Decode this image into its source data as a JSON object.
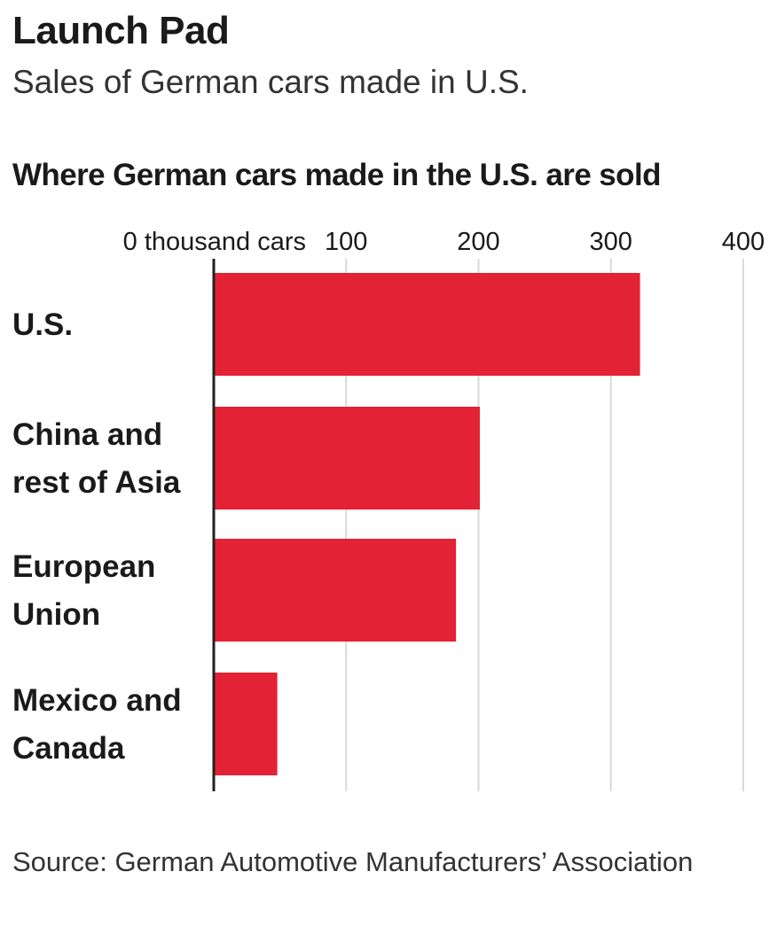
{
  "title": "Launch Pad",
  "subtitle": "Sales of German cars made in U.S.",
  "source": "Source: German Automotive Manufacturers’ Association",
  "colors": {
    "bar": "#e32235",
    "grid": "#d9d9d9",
    "axis": "#222222",
    "text": "#1a1a1a"
  },
  "chart_data": {
    "type": "bar",
    "orientation": "horizontal",
    "title": "Where German cars made in the U.S. are sold",
    "xlabel": "",
    "ylabel": "",
    "x_unit_label": "thousand cars",
    "xlim": [
      0,
      400
    ],
    "xticks": [
      0,
      100,
      200,
      300,
      400
    ],
    "xtick_labels": [
      "0 thousand cars",
      "100",
      "200",
      "300",
      "400"
    ],
    "grid": true,
    "categories": [
      [
        "U.S."
      ],
      [
        "China and",
        "rest of Asia"
      ],
      [
        "European",
        "Union"
      ],
      [
        "Mexico and",
        "Canada"
      ]
    ],
    "values": [
      322,
      201,
      183,
      48
    ]
  }
}
